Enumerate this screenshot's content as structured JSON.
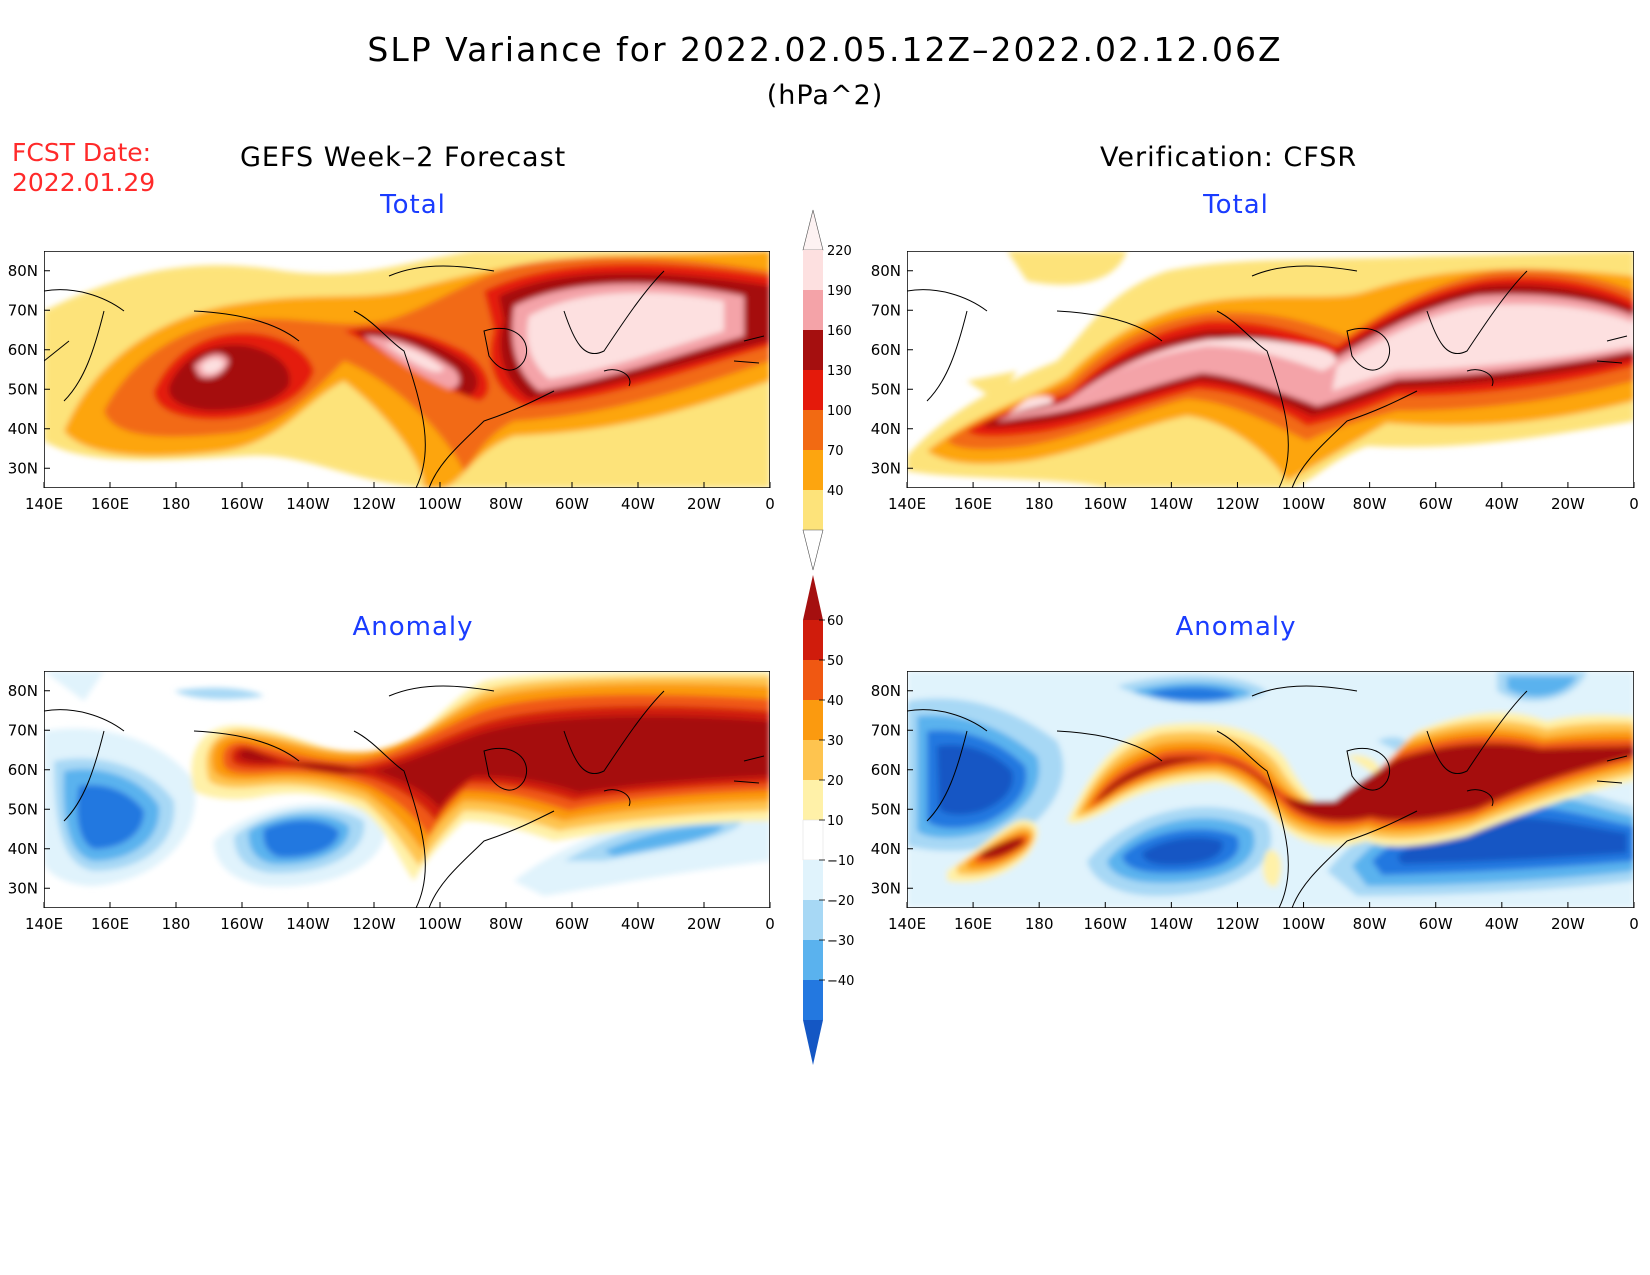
{
  "header": {
    "title": "SLP Variance for 2022.02.05.12Z–2022.02.12.06Z",
    "units": "(hPa^2)",
    "fcst_line1": "FCST Date:",
    "fcst_line2": "2022.01.29",
    "left_heading": "GEFS Week–2 Forecast",
    "right_heading": "Verification: CFSR"
  },
  "panels": {
    "top_left": {
      "title": "Total",
      "field": "total"
    },
    "top_right": {
      "title": "Total",
      "field": "total"
    },
    "bottom_left": {
      "title": "Anomaly",
      "field": "anomaly"
    },
    "bottom_right": {
      "title": "Anomaly",
      "field": "anomaly"
    }
  },
  "axes": {
    "lon_ticks": [
      "140E",
      "160E",
      "180",
      "160W",
      "140W",
      "120W",
      "100W",
      "80W",
      "60W",
      "40W",
      "20W",
      "0"
    ],
    "lat_ticks": [
      "80N",
      "70N",
      "60N",
      "50N",
      "40N",
      "30N"
    ],
    "lon_range": [
      140,
      360
    ],
    "lat_range": [
      25,
      85
    ]
  },
  "colorbars": {
    "total": {
      "labels": [
        "220",
        "190",
        "160",
        "130",
        "100",
        "70",
        "40"
      ],
      "colors": [
        "#fde0e0",
        "#f4a3a8",
        "#a50f0f",
        "#e41a0b",
        "#f26a12",
        "#fda50f",
        "#fde37a"
      ]
    },
    "anomaly": {
      "labels": [
        "60",
        "50",
        "40",
        "30",
        "20",
        "10",
        "−10",
        "−20",
        "−30",
        "−40"
      ],
      "colors": [
        "#a50f0f",
        "#d01c0c",
        "#f05812",
        "#fb9a0f",
        "#fec44f",
        "#fff1a8",
        "#ffffff",
        "#e0f3fc",
        "#a7d8f5",
        "#5ab2ee",
        "#2378e0",
        "#1457c4"
      ]
    }
  }
}
